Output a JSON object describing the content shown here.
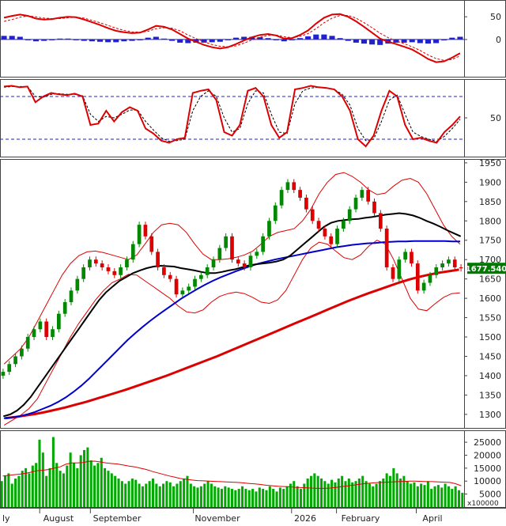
{
  "chart_data": [
    {
      "type": "line",
      "panel": "macd",
      "ylim": [
        -75,
        80
      ],
      "y_ticks": [
        50,
        0
      ],
      "y_tick_labels": [
        "50",
        "0"
      ],
      "zero_line": true,
      "macd_line": [
        48,
        52,
        55,
        52,
        46,
        44,
        45,
        48,
        50,
        49,
        44,
        38,
        32,
        25,
        19,
        16,
        14,
        15,
        22,
        30,
        28,
        22,
        12,
        2,
        -5,
        -12,
        -17,
        -20,
        -17,
        -10,
        -2,
        5,
        10,
        12,
        9,
        2,
        3,
        10,
        20,
        35,
        48,
        55,
        56,
        50,
        40,
        28,
        15,
        2,
        -5,
        -10,
        -16,
        -22,
        -32,
        -43,
        -50,
        -48,
        -40,
        -30
      ],
      "signal_line": [
        40,
        44,
        49,
        52,
        50,
        47,
        46,
        46,
        48,
        49,
        47,
        42,
        37,
        31,
        25,
        20,
        17,
        16,
        18,
        24,
        26,
        25,
        19,
        10,
        2,
        -5,
        -11,
        -15,
        -16,
        -14,
        -8,
        -1,
        5,
        9,
        10,
        6,
        4,
        7,
        13,
        24,
        37,
        47,
        53,
        53,
        47,
        37,
        26,
        14,
        4,
        -3,
        -9,
        -16,
        -24,
        -34,
        -42,
        -46,
        -44,
        -36
      ],
      "histogram": [
        8,
        8,
        6,
        0,
        -4,
        -3,
        -1,
        2,
        2,
        0,
        -3,
        -4,
        -5,
        -6,
        -6,
        -4,
        -3,
        -1,
        4,
        6,
        2,
        -3,
        -7,
        -8,
        -7,
        -7,
        -6,
        -5,
        -1,
        4,
        6,
        6,
        5,
        3,
        -1,
        -4,
        -1,
        3,
        7,
        11,
        11,
        8,
        3,
        -3,
        -7,
        -9,
        -11,
        -12,
        -9,
        -7,
        -7,
        -6,
        -8,
        -9,
        -8,
        -2,
        4,
        6
      ],
      "colors": {
        "line": "#dd0000",
        "signal": "#dd0000",
        "bar": "#2222cc"
      }
    },
    {
      "type": "line",
      "panel": "stochastic",
      "ylim": [
        0,
        100
      ],
      "y_ticks": [
        50
      ],
      "y_tick_labels": [
        "50"
      ],
      "reference_lines": [
        80,
        20
      ],
      "k_line": [
        94,
        95,
        93,
        94,
        72,
        80,
        85,
        83,
        82,
        84,
        80,
        40,
        42,
        60,
        45,
        58,
        65,
        60,
        35,
        28,
        18,
        15,
        20,
        22,
        85,
        88,
        90,
        75,
        30,
        25,
        40,
        88,
        92,
        80,
        40,
        22,
        30,
        90,
        92,
        95,
        93,
        92,
        90,
        80,
        60,
        20,
        10,
        25,
        60,
        88,
        80,
        40,
        20,
        22,
        18,
        15,
        30,
        40,
        52
      ],
      "d_line": [
        93,
        94,
        94,
        94,
        80,
        79,
        83,
        84,
        83,
        83,
        81,
        55,
        45,
        52,
        50,
        55,
        61,
        61,
        45,
        33,
        22,
        17,
        18,
        20,
        60,
        80,
        88,
        80,
        50,
        30,
        35,
        70,
        88,
        85,
        55,
        30,
        28,
        70,
        88,
        92,
        93,
        92,
        90,
        83,
        68,
        35,
        18,
        20,
        45,
        75,
        82,
        55,
        30,
        24,
        20,
        17,
        24,
        35,
        48
      ],
      "colors": {
        "k": "#dd0000",
        "d": "#000000",
        "reference": "#2222cc"
      }
    },
    {
      "type": "candlestick",
      "panel": "price",
      "ylim": [
        1265,
        1960
      ],
      "y_ticks": [
        1950,
        1900,
        1850,
        1800,
        1750,
        1700,
        1650,
        1600,
        1550,
        1500,
        1450,
        1400,
        1350,
        1300
      ],
      "y_tick_labels": [
        "1950",
        "1900",
        "1850",
        "1800",
        "1750",
        "1700",
        "1650",
        "1600",
        "1550",
        "1500",
        "1450",
        "1400",
        "1350",
        "1300"
      ],
      "last_price": "1677.540",
      "close": [
        1410,
        1430,
        1450,
        1470,
        1500,
        1520,
        1540,
        1500,
        1520,
        1560,
        1590,
        1620,
        1650,
        1680,
        1700,
        1690,
        1680,
        1670,
        1660,
        1680,
        1700,
        1740,
        1790,
        1760,
        1720,
        1680,
        1660,
        1650,
        1610,
        1620,
        1630,
        1650,
        1660,
        1680,
        1700,
        1730,
        1760,
        1700,
        1690,
        1680,
        1710,
        1720,
        1760,
        1800,
        1840,
        1880,
        1900,
        1880,
        1860,
        1830,
        1800,
        1780,
        1760,
        1740,
        1780,
        1800,
        1830,
        1860,
        1880,
        1850,
        1820,
        1780,
        1680,
        1650,
        1700,
        1720,
        1690,
        1620,
        1640,
        1660,
        1680,
        1690,
        1700,
        1680,
        1677.54
      ],
      "ma_50": [
        1295,
        1300,
        1310,
        1325,
        1345,
        1370,
        1395,
        1420,
        1445,
        1470,
        1495,
        1520,
        1545,
        1570,
        1595,
        1615,
        1630,
        1645,
        1655,
        1665,
        1672,
        1678,
        1682,
        1684,
        1683,
        1682,
        1678,
        1675,
        1672,
        1668,
        1665,
        1665,
        1668,
        1672,
        1675,
        1680,
        1685,
        1688,
        1690,
        1692,
        1695,
        1700,
        1710,
        1725,
        1740,
        1755,
        1770,
        1785,
        1795,
        1800,
        1802,
        1804,
        1805,
        1808,
        1810,
        1813,
        1816,
        1818,
        1820,
        1818,
        1814,
        1808,
        1800,
        1793,
        1785,
        1776,
        1768,
        1760
      ],
      "ma_100": [
        1290,
        1292,
        1295,
        1300,
        1306,
        1314,
        1322,
        1332,
        1344,
        1358,
        1374,
        1392,
        1412,
        1432,
        1452,
        1472,
        1492,
        1510,
        1527,
        1543,
        1558,
        1572,
        1586,
        1600,
        1612,
        1624,
        1635,
        1645,
        1654,
        1662,
        1670,
        1677,
        1684,
        1690,
        1695,
        1700,
        1704,
        1708,
        1712,
        1716,
        1720,
        1724,
        1728,
        1732,
        1735,
        1738,
        1740,
        1742,
        1743,
        1745,
        1746,
        1747,
        1747,
        1748,
        1748,
        1748,
        1748,
        1748,
        1747,
        1747
      ],
      "ma_200": [
        1290,
        1293,
        1297,
        1301,
        1306,
        1312,
        1318,
        1325,
        1332,
        1340,
        1348,
        1356,
        1364,
        1373,
        1382,
        1391,
        1400,
        1410,
        1420,
        1430,
        1440,
        1450,
        1461,
        1472,
        1483,
        1494,
        1505,
        1516,
        1527,
        1538,
        1549,
        1560,
        1571,
        1582,
        1593,
        1603,
        1613,
        1622,
        1631,
        1640,
        1648,
        1655,
        1661,
        1666,
        1670,
        1674
      ],
      "bollinger_upper": [
        1430,
        1450,
        1470,
        1500,
        1540,
        1580,
        1620,
        1660,
        1690,
        1710,
        1720,
        1722,
        1718,
        1712,
        1706,
        1700,
        1712,
        1740,
        1770,
        1790,
        1794,
        1790,
        1770,
        1740,
        1714,
        1700,
        1700,
        1702,
        1706,
        1712,
        1722,
        1740,
        1760,
        1770,
        1775,
        1780,
        1800,
        1830,
        1870,
        1900,
        1920,
        1925,
        1915,
        1900,
        1880,
        1868,
        1872,
        1890,
        1905,
        1910,
        1900,
        1870,
        1830,
        1790,
        1760,
        1740
      ],
      "bollinger_lower": [
        1272,
        1285,
        1298,
        1315,
        1340,
        1380,
        1420,
        1460,
        1500,
        1535,
        1565,
        1595,
        1620,
        1640,
        1650,
        1662,
        1660,
        1645,
        1630,
        1615,
        1600,
        1580,
        1565,
        1562,
        1570,
        1590,
        1605,
        1612,
        1616,
        1612,
        1602,
        1590,
        1587,
        1596,
        1620,
        1660,
        1700,
        1730,
        1745,
        1740,
        1722,
        1705,
        1700,
        1712,
        1735,
        1750,
        1740,
        1700,
        1650,
        1600,
        1572,
        1568,
        1586,
        1602,
        1612,
        1614
      ],
      "colors": {
        "up": "#008800",
        "down": "#dd0000",
        "ma_50": "#000000",
        "ma_100": "#0000cc",
        "ma_200": "#dd0000",
        "bollinger": "#dd0000",
        "price_tag_bg": "#007a00"
      }
    },
    {
      "type": "bar",
      "panel": "volume",
      "unit_label": "x100000",
      "ylim": [
        0,
        29000
      ],
      "y_ticks": [
        25000,
        20000,
        15000,
        10000,
        5000
      ],
      "y_tick_labels": [
        "25000",
        "20000",
        "15000",
        "10000",
        "5000"
      ],
      "x_labels": [
        "ly",
        "August",
        "September",
        "November",
        "2026",
        "February",
        "April"
      ],
      "volume": [
        10000,
        12000,
        13000,
        9000,
        11000,
        12000,
        14000,
        15000,
        13000,
        16000,
        17000,
        26000,
        21000,
        12000,
        15000,
        27000,
        17000,
        14000,
        13000,
        16000,
        21000,
        17000,
        15000,
        20000,
        22000,
        23000,
        18000,
        16000,
        17000,
        19000,
        15000,
        14000,
        13000,
        12000,
        11000,
        10000,
        9000,
        10000,
        11000,
        10500,
        9000,
        8000,
        9000,
        10000,
        11000,
        9000,
        8000,
        9000,
        10000,
        9500,
        8000,
        9000,
        10000,
        11000,
        12000,
        9000,
        8000,
        7500,
        8000,
        9000,
        10000,
        9000,
        8000,
        7500,
        7000,
        8000,
        7500,
        7000,
        6500,
        7000,
        8000,
        7000,
        6500,
        7000,
        6000,
        7500,
        7000,
        6500,
        8000,
        7000,
        6000,
        7500,
        7000,
        8000,
        9000,
        10000,
        8000,
        7000,
        9000,
        11000,
        12000,
        13000,
        12000,
        11000,
        10000,
        9000,
        10500,
        9500,
        11000,
        12000,
        10000,
        11000,
        9500,
        10000,
        11000,
        12000,
        10000,
        9000,
        8000,
        9000,
        10000,
        11000,
        13000,
        12000,
        15000,
        13000,
        11000,
        12000,
        10000,
        9000,
        9500,
        8000,
        9000,
        8500,
        10000,
        7000,
        8000,
        8500,
        7500,
        9000,
        8000,
        7000,
        8000,
        6500,
        5500
      ],
      "volume_ma": [
        12000,
        12200,
        12500,
        12700,
        13000,
        13500,
        14000,
        14200,
        14500,
        15000,
        15500,
        16500,
        17000,
        17000,
        17200,
        17600,
        17700,
        17400,
        17000,
        16800,
        16600,
        16200,
        15800,
        15500,
        15000,
        14500,
        13800,
        13200,
        12600,
        12000,
        11500,
        11000,
        10700,
        10400,
        10200,
        10100,
        10000,
        9900,
        9800,
        9700,
        9600,
        9500,
        9300,
        9100,
        8900,
        8700,
        8400,
        8200,
        8000,
        7900,
        7800,
        7600,
        7500,
        7400,
        7300,
        7200,
        7200,
        7300,
        7500,
        7800,
        8100,
        8400,
        8700,
        9000,
        9200,
        9400,
        9500,
        9600,
        9700,
        9800,
        9900,
        10000,
        10000,
        9900,
        9800,
        9800,
        9700,
        9600,
        9500,
        9000,
        8200
      ],
      "colors": {
        "bar": "#00aa00",
        "ma": "#dd0000"
      }
    }
  ]
}
